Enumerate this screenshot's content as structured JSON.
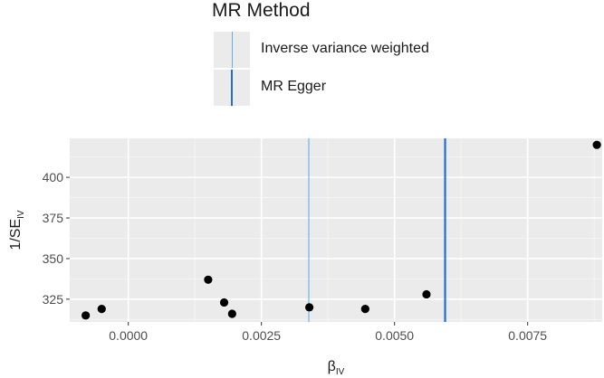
{
  "legend": {
    "title": "MR Method",
    "items": [
      {
        "label": "Inverse variance weighted",
        "color": "#5fb0ee"
      },
      {
        "label": "MR Egger",
        "color": "#1f6fce"
      }
    ]
  },
  "chart_data": {
    "type": "scatter",
    "title": "",
    "xlabel": "β",
    "xlabel_sub": "IV",
    "ylabel": "1/SE",
    "ylabel_sub": "IV",
    "xlim": [
      -0.0011,
      0.0089
    ],
    "ylim": [
      311,
      424
    ],
    "x_ticks": [
      0.0,
      0.0025,
      0.005,
      0.0075
    ],
    "x_tick_labels": [
      "0.0000",
      "0.0025",
      "0.0050",
      "0.0075"
    ],
    "y_ticks": [
      325,
      350,
      375,
      400
    ],
    "y_tick_labels": [
      "325",
      "350",
      "375",
      "400"
    ],
    "grid": true,
    "points": [
      {
        "x": -0.0008,
        "y": 315
      },
      {
        "x": -0.0005,
        "y": 319
      },
      {
        "x": 0.0015,
        "y": 337
      },
      {
        "x": 0.0018,
        "y": 323
      },
      {
        "x": 0.00195,
        "y": 316
      },
      {
        "x": 0.0034,
        "y": 320
      },
      {
        "x": 0.00445,
        "y": 319
      },
      {
        "x": 0.0056,
        "y": 328
      },
      {
        "x": 0.0088,
        "y": 420
      }
    ],
    "lines": [
      {
        "method": "Inverse variance weighted",
        "x": 0.00339,
        "color": "#5fb0ee"
      },
      {
        "method": "MR Egger",
        "x": 0.00595,
        "color": "#1f6fce"
      }
    ]
  }
}
